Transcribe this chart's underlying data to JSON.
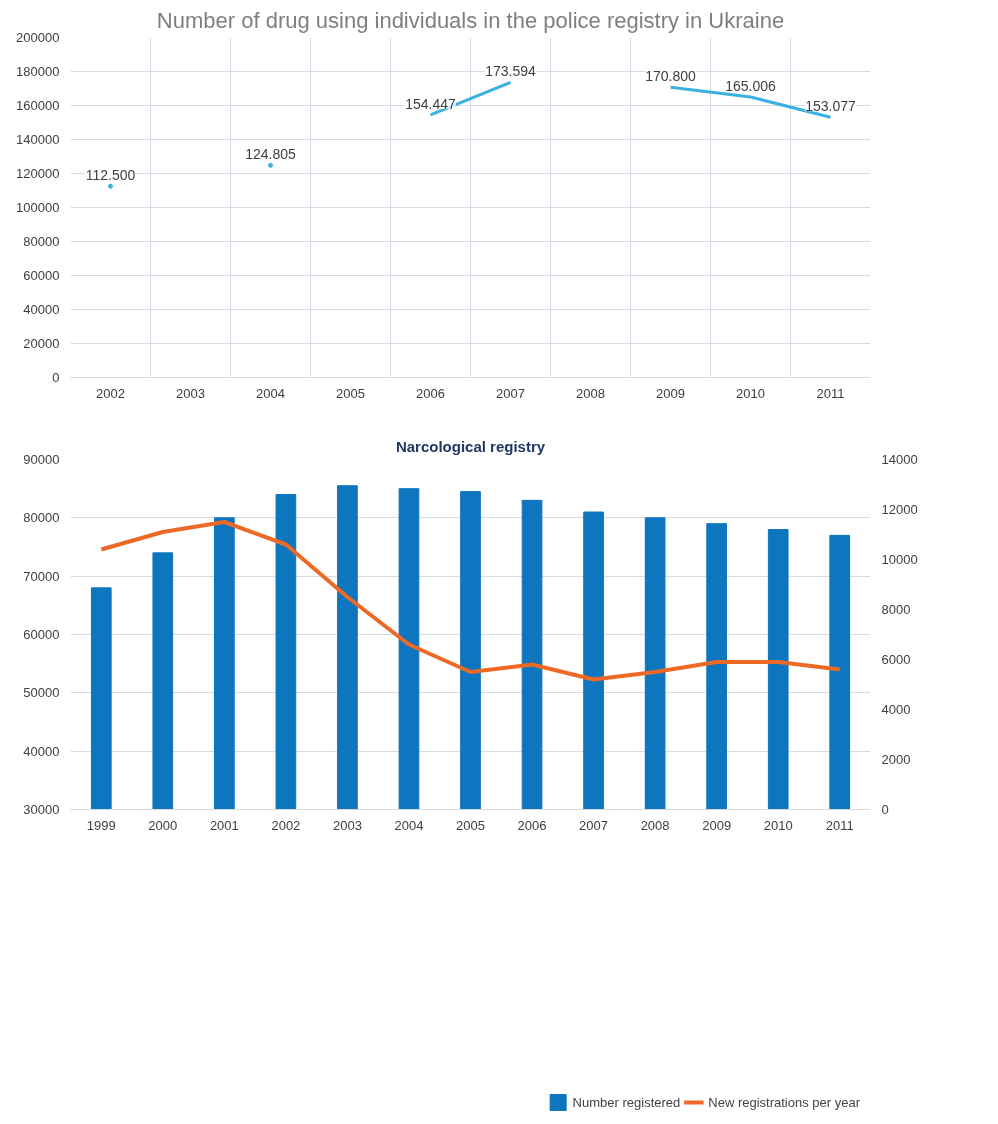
{
  "chart_data": [
    {
      "type": "line",
      "title": "Number of drug using individuals in the police registry in Ukraine",
      "categories": [
        "2002",
        "2003",
        "2004",
        "2005",
        "2006",
        "2007",
        "2008",
        "2009",
        "2010",
        "2011"
      ],
      "series": [
        {
          "color": "#3cb0e0",
          "values": [
            112500,
            null,
            124805,
            null,
            154447,
            173594,
            null,
            170800,
            165006,
            153077
          ],
          "value_labels": [
            "112.500",
            null,
            "124.805",
            null,
            "154.447",
            "173.594",
            null,
            "170.800",
            "165.006",
            "153.077"
          ]
        }
      ],
      "ylim": [
        0,
        200000
      ],
      "yticks": [
        0,
        20000,
        40000,
        60000,
        80000,
        100000,
        120000,
        140000,
        160000,
        180000,
        200000
      ],
      "grid": true,
      "marker": "none",
      "line_style": "solid"
    },
    {
      "type": "bar",
      "title": "Narcological registry",
      "categories": [
        "1999",
        "2000",
        "2001",
        "2002",
        "2003",
        "2004",
        "2005",
        "2006",
        "2007",
        "2008",
        "2009",
        "2010",
        "2011"
      ],
      "series": [
        {
          "name": "Number registered",
          "color": "#0e75bf",
          "values": [
            68000,
            74000,
            80000,
            84000,
            85500,
            85000,
            84500,
            83000,
            81000,
            80000,
            79000,
            78000,
            77000
          ]
        },
        {
          "name": "New registrations per year",
          "type": "line",
          "axis": "y2",
          "color": "#ed6a26",
          "values": [
            10400,
            11100,
            11500,
            10600,
            8500,
            6600,
            5500,
            5800,
            5200,
            5500,
            5900,
            5900,
            5600
          ]
        }
      ],
      "ylim": [
        30000,
        90000
      ],
      "yticks": [
        30000,
        40000,
        50000,
        60000,
        70000,
        80000,
        90000
      ],
      "y2lim": [
        0,
        14000
      ],
      "y2ticks": [
        0,
        2000,
        4000,
        6000,
        8000,
        10000,
        12000,
        14000
      ],
      "grid": "y",
      "legend": "bottom"
    }
  ]
}
